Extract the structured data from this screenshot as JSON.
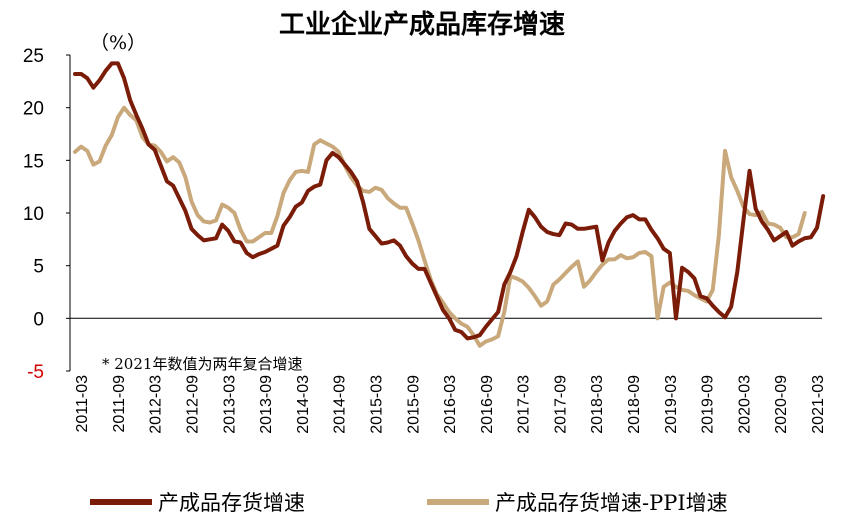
{
  "chart_data": {
    "type": "line",
    "title": "工业企业产成品库存增速",
    "unit_label": "（%）",
    "note": "* 2021年数值为两年复合增速",
    "ylim": [
      -5,
      25
    ],
    "yticks": [
      25,
      20,
      15,
      10,
      5,
      0,
      -5
    ],
    "grid": false,
    "legend_position": "bottom",
    "x_tick_labels": [
      "2011-03",
      "2011-09",
      "2012-03",
      "2012-09",
      "2013-03",
      "2013-09",
      "2014-03",
      "2014-09",
      "2015-03",
      "2015-09",
      "2016-03",
      "2016-09",
      "2017-03",
      "2017-09",
      "2018-03",
      "2018-09",
      "2019-03",
      "2019-09",
      "2020-03",
      "2020-09",
      "2021-03"
    ],
    "x_start": "2011-02",
    "x_end": "2021-03",
    "series": [
      {
        "name": "产成品存货增速",
        "color": "#7b1c08",
        "values": [
          23.2,
          23.2,
          22.8,
          21.9,
          22.6,
          23.5,
          24.2,
          24.2,
          22.8,
          20.7,
          19.3,
          18.0,
          16.5,
          16.0,
          14.5,
          13.0,
          12.6,
          11.4,
          10.2,
          8.5,
          7.9,
          7.4,
          7.5,
          7.6,
          8.9,
          8.3,
          7.3,
          7.2,
          6.2,
          5.8,
          6.1,
          6.3,
          6.6,
          6.9,
          8.8,
          9.6,
          10.6,
          11.0,
          12.1,
          12.5,
          12.7,
          15.0,
          15.7,
          15.3,
          14.6,
          13.9,
          13.0,
          11.0,
          8.5,
          7.8,
          7.1,
          7.2,
          7.4,
          6.9,
          5.9,
          5.2,
          4.7,
          4.7,
          3.4,
          2.1,
          0.8,
          0.0,
          -1.1,
          -1.3,
          -1.9,
          -1.8,
          -1.6,
          -0.8,
          -0.1,
          0.6,
          3.2,
          4.4,
          5.9,
          8.2,
          10.3,
          9.6,
          8.7,
          8.2,
          8.0,
          7.9,
          9.0,
          8.9,
          8.5,
          8.5,
          8.6,
          8.7,
          5.5,
          7.2,
          8.3,
          9.0,
          9.6,
          9.8,
          9.4,
          9.4,
          8.4,
          7.6,
          6.6,
          6.2,
          0.0,
          4.8,
          4.4,
          3.8,
          2.1,
          1.9,
          1.2,
          0.6,
          0.1,
          1.1,
          4.4,
          9.3,
          14.0,
          10.4,
          9.2,
          8.4,
          7.4,
          7.8,
          8.2,
          6.9,
          7.3,
          7.6,
          7.7,
          8.6,
          11.6
        ]
      },
      {
        "name": "产成品存货增速-PPI增速",
        "color": "#c9a97c",
        "values": [
          15.8,
          16.3,
          15.9,
          14.6,
          14.9,
          16.4,
          17.4,
          19.1,
          20.0,
          19.3,
          18.8,
          17.2,
          16.5,
          16.4,
          15.8,
          14.9,
          15.3,
          14.8,
          13.4,
          11.1,
          9.8,
          9.2,
          9.1,
          9.3,
          10.8,
          10.5,
          10.0,
          8.4,
          7.3,
          7.3,
          7.7,
          8.1,
          8.1,
          9.7,
          11.9,
          13.1,
          13.9,
          14.0,
          13.9,
          16.5,
          16.9,
          16.6,
          16.3,
          15.8,
          14.5,
          13.4,
          12.6,
          12.1,
          12.0,
          12.4,
          12.2,
          11.4,
          10.9,
          10.5,
          10.5,
          9.0,
          7.4,
          5.5,
          3.7,
          2.3,
          1.5,
          0.6,
          0.0,
          -0.5,
          -0.8,
          -1.6,
          -2.6,
          -2.2,
          -2.0,
          -1.7,
          0.6,
          4.0,
          3.8,
          3.5,
          2.9,
          2.1,
          1.2,
          1.6,
          3.2,
          3.7,
          4.3,
          4.9,
          5.4,
          3.0,
          3.6,
          4.4,
          5.1,
          5.6,
          5.6,
          6.0,
          5.7,
          5.8,
          6.2,
          6.3,
          5.9,
          0.0,
          3.0,
          3.4,
          3.0,
          2.7,
          2.6,
          2.2,
          1.9,
          1.6,
          2.7,
          7.9,
          15.9,
          13.4,
          12.1,
          10.6,
          9.9,
          9.8,
          10.1,
          9.0,
          8.9,
          8.6,
          7.7,
          7.7,
          8.0,
          10.0
        ]
      }
    ]
  }
}
